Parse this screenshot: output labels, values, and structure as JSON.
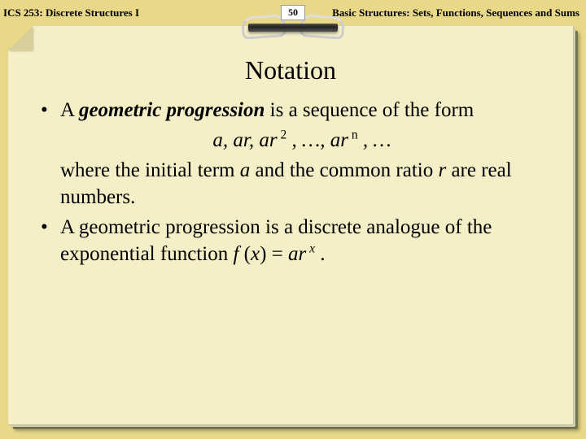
{
  "header": {
    "course": "ICS 253: Discrete Structures I",
    "chapter": "Basic Structures: Sets, Functions, Sequences and Sums",
    "page_number": "50"
  },
  "slide": {
    "title": "Notation",
    "bullet1_part1": "A ",
    "bullet1_term": "geometric progression",
    "bullet1_part2": " is a sequence of the form",
    "formula_a": "a, ar, ar",
    "formula_exp2": " 2",
    "formula_mid": " , …, ar",
    "formula_expn": " n",
    "formula_tail": " , …",
    "bullet1_cont1": "where the initial term ",
    "bullet1_var_a": "a",
    "bullet1_cont2": " and the common ratio ",
    "bullet1_var_r": "r",
    "bullet1_cont3": " are real numbers.",
    "bullet2_part1": "A geometric progression is a discrete analogue of the exponential function ",
    "bullet2_fx": "f ",
    "bullet2_paren_open": "(",
    "bullet2_x": "x",
    "bullet2_paren_close": ") = ",
    "bullet2_ar": "ar",
    "bullet2_exp_x": " x",
    "bullet2_period": " ."
  },
  "colors": {
    "background": "#e8d888",
    "sheet_front": "#f5efc8",
    "text": "#000000"
  }
}
